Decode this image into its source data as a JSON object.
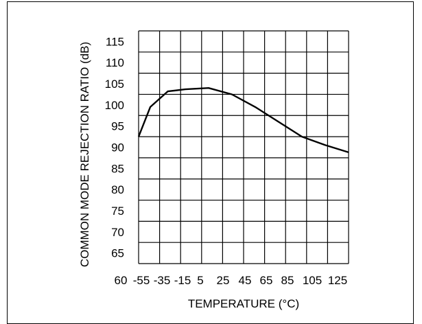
{
  "chart_data": {
    "type": "line",
    "title": "",
    "xlabel": "TEMPERATURE (°C)",
    "ylabel": "COMMON MODE REJECTION RATIO (dB)",
    "x_ticks": [
      "60",
      "-55",
      "-35",
      "-15",
      "5",
      "25",
      "45",
      "65",
      "85",
      "105",
      "125"
    ],
    "y_ticks": [
      "115",
      "110",
      "105",
      "100",
      "95",
      "90",
      "85",
      "80",
      "75",
      "70",
      "65"
    ],
    "xlim": [
      -55,
      125
    ],
    "ylim": [
      65,
      118
    ],
    "grid": true,
    "series": [
      {
        "x": [
          -55,
          -45,
          -30,
          -15,
          5,
          25,
          45,
          65,
          85,
          105,
          125
        ],
        "y": [
          92.5,
          99.5,
          103.2,
          103.7,
          104.0,
          102.5,
          99.5,
          96.0,
          92.5,
          90.5,
          88.8
        ]
      }
    ],
    "line_color": "#000000"
  }
}
